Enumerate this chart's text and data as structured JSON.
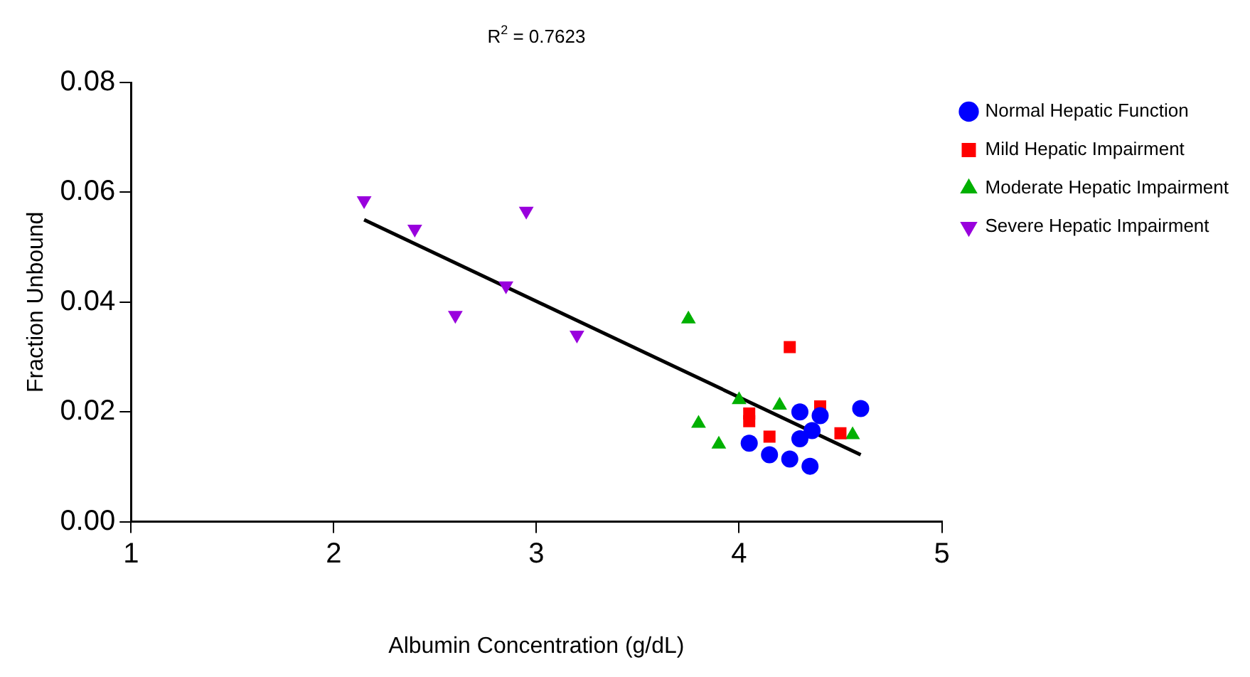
{
  "chart_data": {
    "type": "scatter",
    "title": "R$^{2}$ = 0.7623",
    "xlabel": "Albumin Concentration (g/dL)",
    "ylabel": "Fraction Unbound",
    "xlim": [
      1,
      5
    ],
    "xticks": [
      1,
      2,
      3,
      4,
      5
    ],
    "ylim": [
      0,
      0.08
    ],
    "yticks": [
      {
        "value": 0,
        "label": "0.00"
      },
      {
        "value": 0.02,
        "label": "0.02"
      },
      {
        "value": 0.04,
        "label": "0.04"
      },
      {
        "value": 0.06,
        "label": "0.06"
      },
      {
        "value": 0.08,
        "label": "0.08"
      }
    ],
    "grid": false,
    "legend": "top right",
    "series": [
      {
        "name": "Normal Hepatic Function",
        "color": "#0000ff",
        "marker": "circle",
        "x": [
          4.3,
          4.4,
          4.6,
          4.36,
          4.3,
          4.05,
          4.15,
          4.25,
          4.35
        ],
        "values": [
          0.02,
          0.0193,
          0.0206,
          0.0166,
          0.0151,
          0.0143,
          0.0122,
          0.0114,
          0.0101
        ]
      },
      {
        "name": "Mild Hepatic Impairment",
        "color": "#ff0000",
        "marker": "square",
        "x": [
          4.25,
          4.4,
          4.05,
          4.05,
          4.15,
          4.5
        ],
        "values": [
          0.0318,
          0.021,
          0.0197,
          0.0183,
          0.0155,
          0.0161
        ]
      },
      {
        "name": "Moderate Hepatic Impairment",
        "color": "#00b000",
        "marker": "triangle",
        "x": [
          3.75,
          4.0,
          4.2,
          3.8,
          3.9,
          4.56
        ],
        "values": [
          0.0369,
          0.0222,
          0.0212,
          0.0179,
          0.0141,
          0.0158
        ]
      },
      {
        "name": "Severe Hepatic Impairment",
        "color": "#9900dd",
        "marker": "triangle-down",
        "x": [
          2.15,
          2.4,
          2.95,
          2.85,
          2.6,
          3.2
        ],
        "values": [
          0.0585,
          0.0533,
          0.0566,
          0.043,
          0.0376,
          0.034
        ]
      },
      {
        "type": "line",
        "color": "#000000",
        "marker": "none",
        "x": [
          2.15,
          4.6
        ],
        "values": [
          0.055,
          0.0122
        ]
      }
    ]
  }
}
